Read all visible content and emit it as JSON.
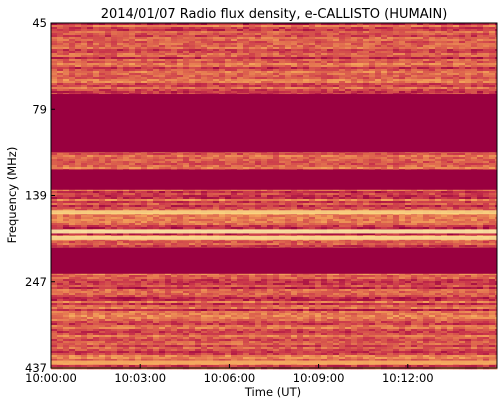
{
  "chart_data": {
    "type": "heatmap",
    "title": "2014/01/07  Radio flux density, e-CALLISTO (HUMAIN)",
    "xlabel": "Time (UT)",
    "ylabel": "Frequency (MHz)",
    "x_ticks": [
      "10:00:00",
      "10:03:00",
      "10:06:00",
      "10:09:00",
      "10:12:00"
    ],
    "x_tick_minutes": [
      0,
      3,
      6,
      9,
      12
    ],
    "x_range_minutes": [
      0,
      15
    ],
    "y_ticks": [
      "45",
      "79",
      "139",
      "247",
      "437"
    ],
    "y_tick_values": [
      45,
      79,
      139,
      247,
      437
    ],
    "y_range": [
      45,
      437
    ],
    "y_direction": "top-to-bottom increasing",
    "colormap": [
      "#5a0033",
      "#99003f",
      "#c8324a",
      "#e06a4e",
      "#f3a15a",
      "#fbd77e",
      "#fff6b8"
    ],
    "grid": false,
    "saturated_bands_mhz": [
      {
        "from": 73,
        "to": 109,
        "color": "#99003f"
      },
      {
        "from": 121,
        "to": 135,
        "color": "#99003f"
      },
      {
        "from": 204,
        "to": 237,
        "color": "#99003f"
      }
    ],
    "bright_lines_mhz": [
      {
        "at": 160,
        "intensity": 0.85
      },
      {
        "at": 184,
        "intensity": 0.95
      },
      {
        "at": 192,
        "intensity": 0.9
      },
      {
        "at": 425,
        "intensity": 0.7
      }
    ]
  }
}
